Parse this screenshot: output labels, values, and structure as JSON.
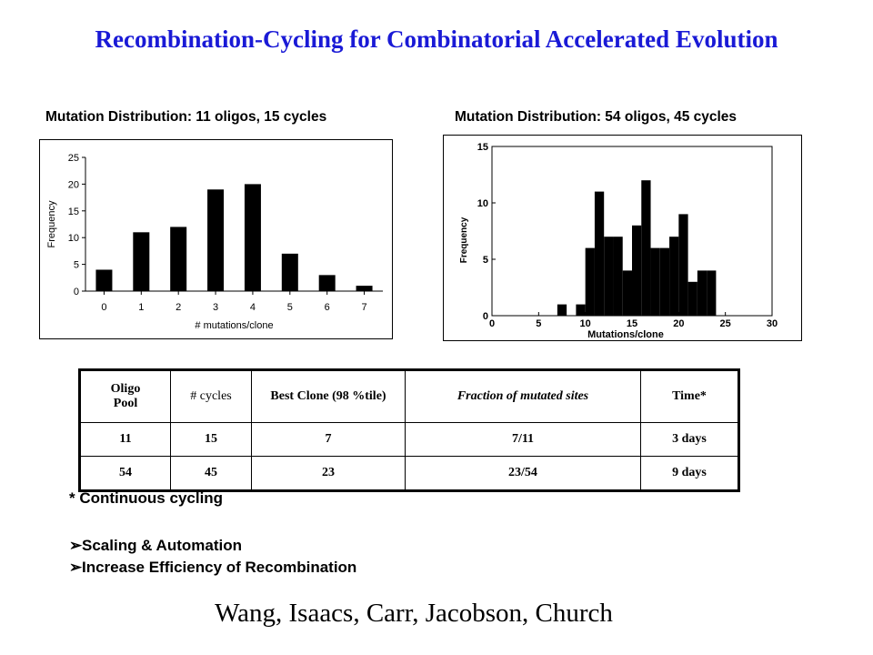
{
  "slide": {
    "title": "Recombination-Cycling for Combinatorial Accelerated Evolution",
    "footnote": "* Continuous cycling",
    "bullets": [
      "Scaling & Automation",
      "Increase Efficiency of Recombination"
    ],
    "bullet_icon": "arrowhead-bullet-icon",
    "authors": "Wang, Isaacs, Carr, Jacobson, Church",
    "title_color": "#1a1ad6"
  },
  "chart_data": [
    {
      "type": "bar",
      "title": "Mutation Distribution:  11 oligos, 15 cycles",
      "xlabel": "# mutations/clone",
      "ylabel": "Frequency",
      "categories": [
        "0",
        "1",
        "2",
        "3",
        "4",
        "5",
        "6",
        "7"
      ],
      "values": [
        4,
        11,
        12,
        19,
        20,
        7,
        3,
        1
      ],
      "ylim": [
        0,
        25
      ],
      "yticks": [
        0,
        5,
        10,
        15,
        20,
        25
      ],
      "grid": false,
      "legend": "none"
    },
    {
      "type": "bar",
      "title": "Mutation Distribution:  54 oligos, 45 cycles",
      "xlabel": "Mutations/clone",
      "ylabel": "Frequency",
      "x": [
        7,
        9,
        10,
        11,
        12,
        13,
        14,
        15,
        16,
        17,
        18,
        19,
        20,
        21,
        22,
        23
      ],
      "values": [
        1,
        1,
        6,
        11,
        7,
        7,
        4,
        8,
        12,
        6,
        6,
        7,
        9,
        3,
        4,
        4
      ],
      "bin_width": 1,
      "xlim": [
        0,
        30
      ],
      "ylim": [
        0,
        15
      ],
      "xticks": [
        0,
        5,
        10,
        15,
        20,
        25,
        30
      ],
      "yticks": [
        0,
        5,
        10,
        15
      ],
      "grid": false,
      "legend": "none"
    }
  ],
  "table": {
    "headers": [
      "Oligo\nPool",
      "# cycles",
      "Best Clone (98 %tile)",
      "Fraction of mutated sites",
      "Time*"
    ],
    "rows": [
      [
        "11",
        "15",
        "7",
        "7/11",
        "3 days"
      ],
      [
        "54",
        "45",
        "23",
        "23/54",
        "9 days"
      ]
    ]
  }
}
